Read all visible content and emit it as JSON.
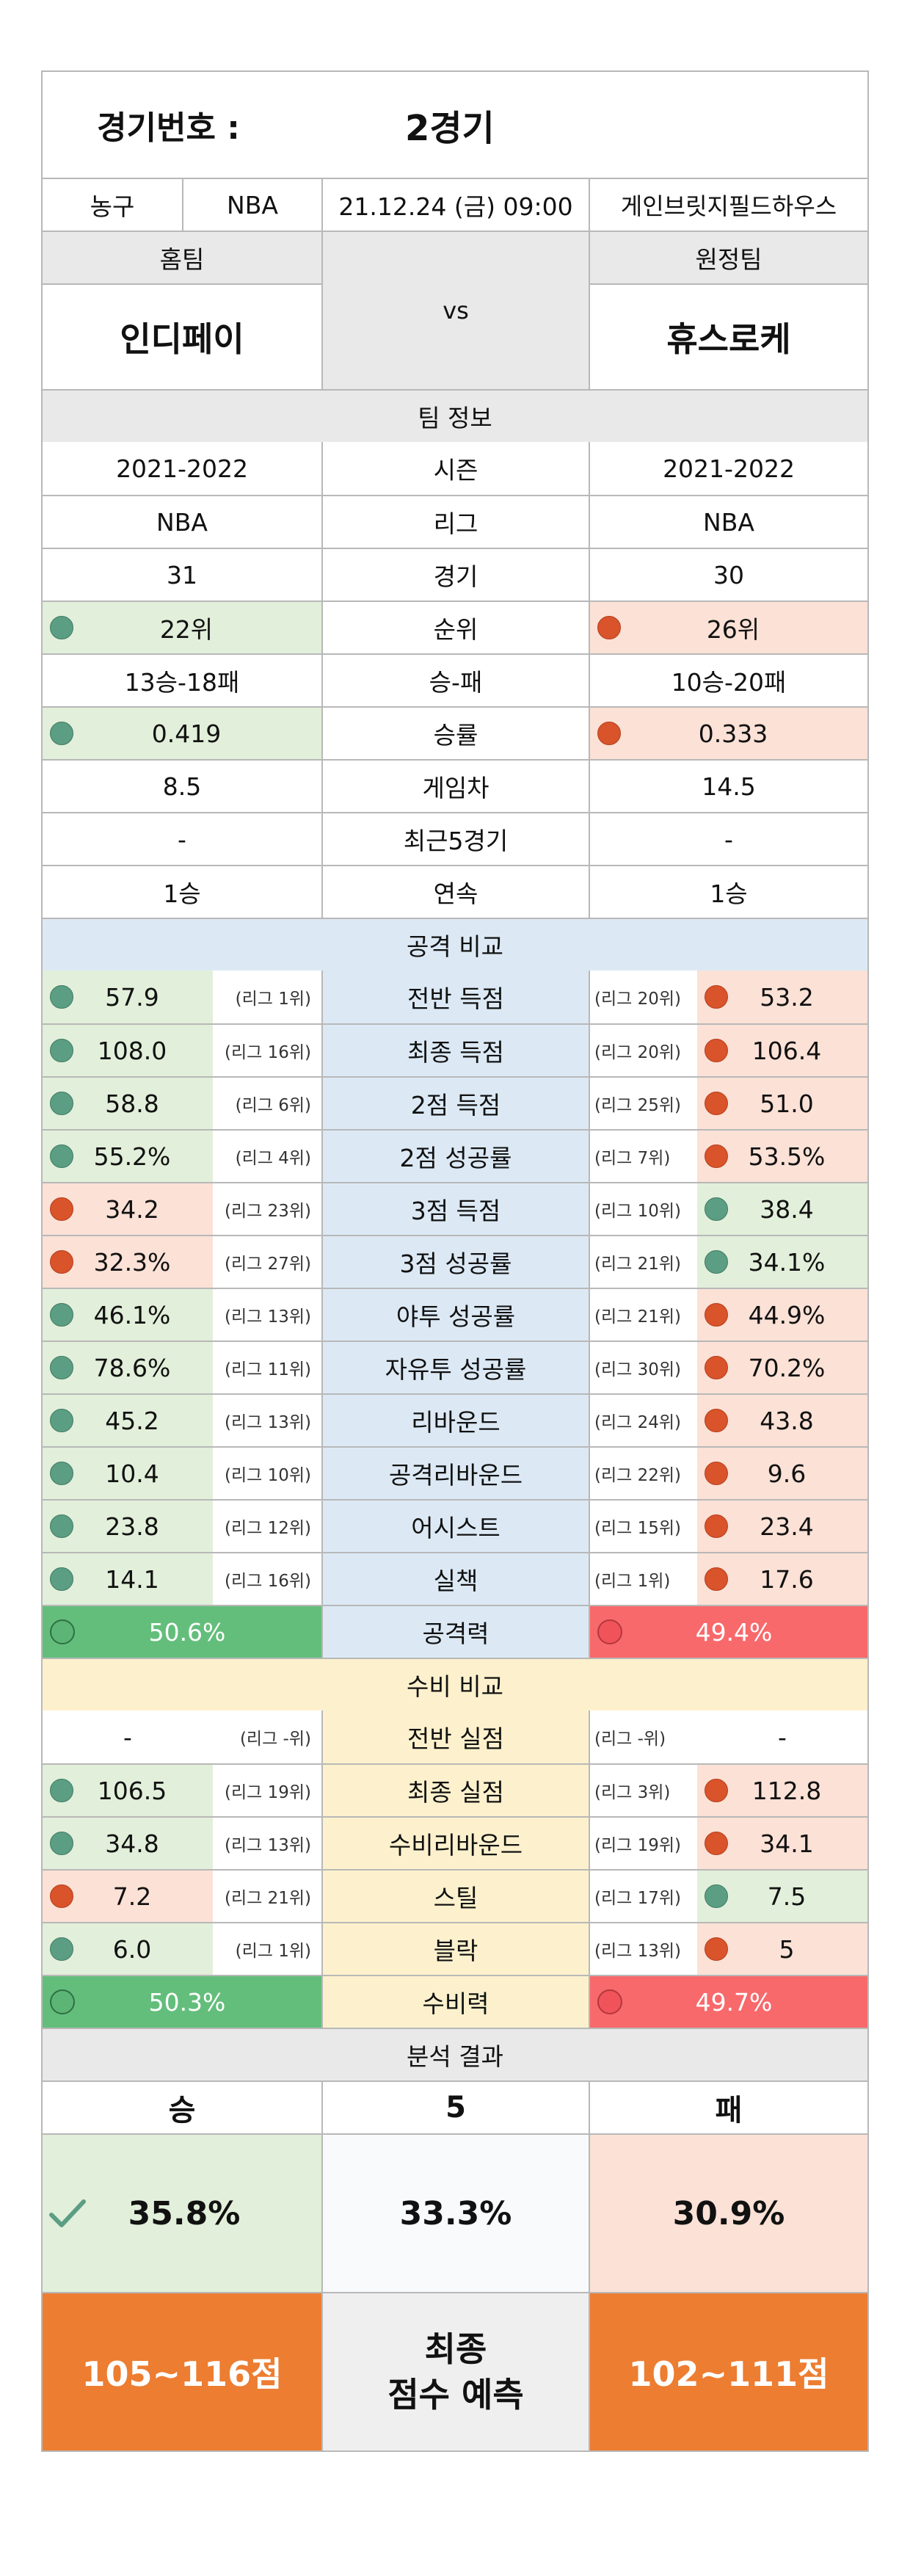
{
  "header": {
    "match_label": "경기번호 :",
    "match_value": "2경기",
    "sport": "농구",
    "league": "NBA",
    "datetime": "21.12.24 (금) 09:00",
    "venue": "게인브릿지필드하우스",
    "home_label": "홈팀",
    "away_label": "원정팀",
    "home_team": "인디페이",
    "away_team": "휴스로케",
    "vs": "vs"
  },
  "team_info": {
    "title": "팀 정보",
    "rows": [
      {
        "label": "시즌",
        "home": "2021-2022",
        "away": "2021-2022",
        "hi": "none"
      },
      {
        "label": "리그",
        "home": "NBA",
        "away": "NBA",
        "hi": "none"
      },
      {
        "label": "경기",
        "home": "31",
        "away": "30",
        "hi": "none"
      },
      {
        "label": "순위",
        "home": "22위",
        "away": "26위",
        "hi": "home"
      },
      {
        "label": "승-패",
        "home": "13승-18패",
        "away": "10승-20패",
        "hi": "none"
      },
      {
        "label": "승률",
        "home": "0.419",
        "away": "0.333",
        "hi": "home"
      },
      {
        "label": "게임차",
        "home": "8.5",
        "away": "14.5",
        "hi": "none"
      },
      {
        "label": "최근5경기",
        "home": "-",
        "away": "-",
        "hi": "none"
      },
      {
        "label": "연속",
        "home": "1승",
        "away": "1승",
        "hi": "none"
      }
    ]
  },
  "offense": {
    "title": "공격 비교",
    "rows": [
      {
        "label": "전반 득점",
        "home": "57.9",
        "home_rank": "(리그 1위)",
        "away": "53.2",
        "away_rank": "(리그 20위)",
        "better": "home"
      },
      {
        "label": "최종 득점",
        "home": "108.0",
        "home_rank": "(리그 16위)",
        "away": "106.4",
        "away_rank": "(리그 20위)",
        "better": "home"
      },
      {
        "label": "2점 득점",
        "home": "58.8",
        "home_rank": "(리그 6위)",
        "away": "51.0",
        "away_rank": "(리그 25위)",
        "better": "home"
      },
      {
        "label": "2점 성공률",
        "home": "55.2%",
        "home_rank": "(리그 4위)",
        "away": "53.5%",
        "away_rank": "(리그 7위)",
        "better": "home"
      },
      {
        "label": "3점 득점",
        "home": "34.2",
        "home_rank": "(리그 23위)",
        "away": "38.4",
        "away_rank": "(리그 10위)",
        "better": "away"
      },
      {
        "label": "3점 성공률",
        "home": "32.3%",
        "home_rank": "(리그 27위)",
        "away": "34.1%",
        "away_rank": "(리그 21위)",
        "better": "away"
      },
      {
        "label": "야투 성공률",
        "home": "46.1%",
        "home_rank": "(리그 13위)",
        "away": "44.9%",
        "away_rank": "(리그 21위)",
        "better": "home"
      },
      {
        "label": "자유투 성공률",
        "home": "78.6%",
        "home_rank": "(리그 11위)",
        "away": "70.2%",
        "away_rank": "(리그 30위)",
        "better": "home"
      },
      {
        "label": "리바운드",
        "home": "45.2",
        "home_rank": "(리그 13위)",
        "away": "43.8",
        "away_rank": "(리그 24위)",
        "better": "home"
      },
      {
        "label": "공격리바운드",
        "home": "10.4",
        "home_rank": "(리그 10위)",
        "away": "9.6",
        "away_rank": "(리그 22위)",
        "better": "home"
      },
      {
        "label": "어시스트",
        "home": "23.8",
        "home_rank": "(리그 12위)",
        "away": "23.4",
        "away_rank": "(리그 15위)",
        "better": "home"
      },
      {
        "label": "실책",
        "home": "14.1",
        "home_rank": "(리그 16위)",
        "away": "17.6",
        "away_rank": "(리그 1위)",
        "better": "home"
      }
    ],
    "power": {
      "label": "공격력",
      "home": "50.6%",
      "away": "49.4%"
    }
  },
  "defense": {
    "title": "수비 비교",
    "rows": [
      {
        "label": "전반 실점",
        "home": "-",
        "home_rank": "(리그 -위)",
        "away": "-",
        "away_rank": "(리그 -위)",
        "better": "none"
      },
      {
        "label": "최종 실점",
        "home": "106.5",
        "home_rank": "(리그 19위)",
        "away": "112.8",
        "away_rank": "(리그 3위)",
        "better": "home"
      },
      {
        "label": "수비리바운드",
        "home": "34.8",
        "home_rank": "(리그 13위)",
        "away": "34.1",
        "away_rank": "(리그 19위)",
        "better": "home"
      },
      {
        "label": "스틸",
        "home": "7.2",
        "home_rank": "(리그 21위)",
        "away": "7.5",
        "away_rank": "(리그 17위)",
        "better": "away"
      },
      {
        "label": "블락",
        "home": "6.0",
        "home_rank": "(리그 1위)",
        "away": "5",
        "away_rank": "(리그 13위)",
        "better": "home"
      }
    ],
    "power": {
      "label": "수비력",
      "home": "50.3%",
      "away": "49.7%"
    }
  },
  "analysis": {
    "title": "분석 결과",
    "win_label": "승",
    "draw_label": "5",
    "lose_label": "패",
    "win_pct": "35.8%",
    "draw_pct": "33.3%",
    "lose_pct": "30.9%",
    "check_icon": "check-icon",
    "home_score": "105~116점",
    "final_line1": "최종",
    "final_line2": "점수 예측",
    "away_score": "102~111점"
  },
  "colors": {
    "good": "#e2efda",
    "bad": "#fbe1d6",
    "good_strong": "#63be7b",
    "bad_strong": "#f8696b",
    "accent": "#ed7d31"
  }
}
